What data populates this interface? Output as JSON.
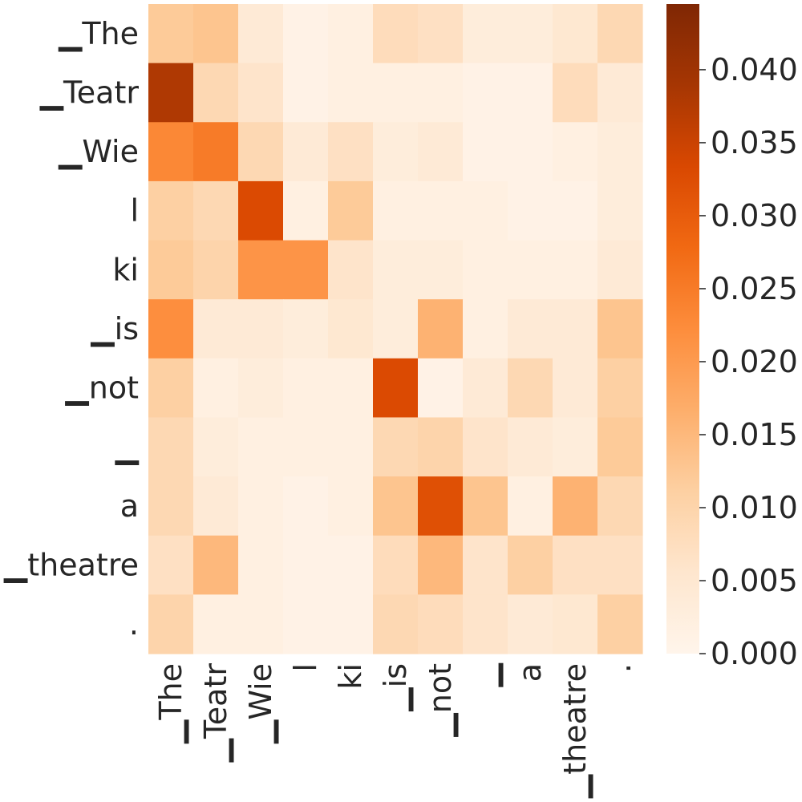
{
  "chart_data": {
    "type": "heatmap",
    "title": "",
    "xlabel": "",
    "ylabel": "",
    "x_labels": [
      "▁The",
      "▁Teatr",
      "▁Wie",
      "l",
      "ki",
      "▁is",
      "▁not",
      "▁",
      "a",
      "▁theatre",
      "."
    ],
    "y_labels": [
      "▁The",
      "▁Teatr",
      "▁Wie",
      "l",
      "ki",
      "▁is",
      "▁not",
      "▁",
      "a",
      "▁theatre",
      "."
    ],
    "values": [
      [
        0.012,
        0.013,
        0.004,
        0.001,
        0.002,
        0.008,
        0.007,
        0.003,
        0.003,
        0.005,
        0.009
      ],
      [
        0.038,
        0.009,
        0.006,
        0.001,
        0.002,
        0.002,
        0.002,
        0.001,
        0.001,
        0.008,
        0.004
      ],
      [
        0.023,
        0.025,
        0.009,
        0.004,
        0.007,
        0.003,
        0.004,
        0.001,
        0.001,
        0.002,
        0.003
      ],
      [
        0.011,
        0.009,
        0.033,
        0.002,
        0.012,
        0.002,
        0.002,
        0.002,
        0.001,
        0.001,
        0.003
      ],
      [
        0.012,
        0.01,
        0.021,
        0.021,
        0.006,
        0.003,
        0.003,
        0.002,
        0.002,
        0.002,
        0.004
      ],
      [
        0.022,
        0.004,
        0.004,
        0.003,
        0.005,
        0.003,
        0.016,
        0.002,
        0.004,
        0.004,
        0.013
      ],
      [
        0.011,
        0.002,
        0.003,
        0.002,
        0.002,
        0.033,
        0.001,
        0.004,
        0.009,
        0.004,
        0.011
      ],
      [
        0.009,
        0.003,
        0.002,
        0.002,
        0.002,
        0.009,
        0.01,
        0.006,
        0.004,
        0.003,
        0.012
      ],
      [
        0.009,
        0.004,
        0.002,
        0.001,
        0.002,
        0.013,
        0.032,
        0.013,
        0.002,
        0.016,
        0.009
      ],
      [
        0.007,
        0.015,
        0.002,
        0.001,
        0.001,
        0.008,
        0.015,
        0.006,
        0.011,
        0.007,
        0.007
      ],
      [
        0.01,
        0.002,
        0.002,
        0.001,
        0.001,
        0.009,
        0.008,
        0.006,
        0.004,
        0.005,
        0.011
      ]
    ],
    "vmin": 0.0,
    "vmax": 0.0445,
    "colormap": "Oranges",
    "colorbar_ticks": [
      "0.000",
      "0.005",
      "0.010",
      "0.015",
      "0.020",
      "0.025",
      "0.030",
      "0.035",
      "0.040"
    ],
    "grid": false
  }
}
